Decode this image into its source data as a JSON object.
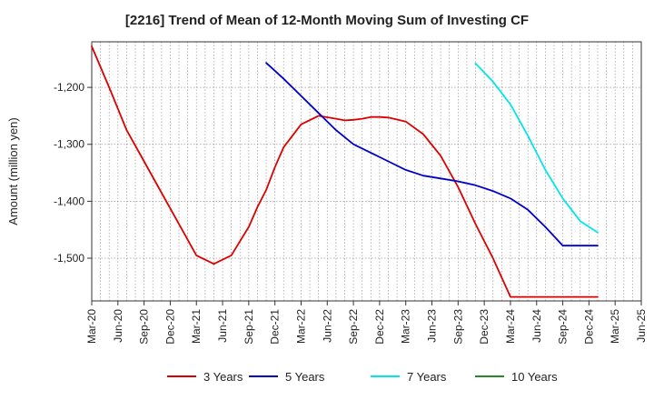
{
  "chart_data": {
    "type": "line",
    "title": "[2216]  Trend of Mean of 12-Month Moving Sum of Investing CF",
    "xlabel": "",
    "ylabel": "Amount (million yen)",
    "ylim": [
      -1575,
      -1120
    ],
    "yticks": [
      -1200,
      -1300,
      -1400,
      -1500
    ],
    "ytick_labels": [
      "-1,200",
      "-1,300",
      "-1,400",
      "-1,500"
    ],
    "x_range": [
      0,
      63
    ],
    "x_tick_labels": [
      "Mar-20",
      "Jun-20",
      "Sep-20",
      "Dec-20",
      "Mar-21",
      "Jun-21",
      "Sep-21",
      "Dec-21",
      "Mar-22",
      "Jun-22",
      "Sep-22",
      "Dec-22",
      "Mar-23",
      "Jun-23",
      "Sep-23",
      "Dec-23",
      "Mar-24",
      "Jun-24",
      "Sep-24",
      "Dec-24",
      "Mar-25",
      "Jun-25"
    ],
    "grid": true,
    "legend_position": "bottom",
    "series": [
      {
        "name": "3 Years",
        "color": "#dd0000",
        "x": [
          0,
          2,
          4,
          6,
          8,
          10,
          12,
          14,
          16,
          17,
          18,
          19,
          20,
          21,
          22,
          24,
          26,
          28,
          29,
          30,
          31,
          32,
          33,
          34,
          36,
          38,
          40,
          42,
          44,
          46,
          48,
          50,
          52,
          54,
          56,
          58
        ],
        "y": [
          -1128,
          -1200,
          -1275,
          -1330,
          -1385,
          -1440,
          -1495,
          -1510,
          -1495,
          -1470,
          -1445,
          -1410,
          -1380,
          -1340,
          -1305,
          -1265,
          -1250,
          -1255,
          -1258,
          -1257,
          -1255,
          -1252,
          -1252,
          -1253,
          -1260,
          -1282,
          -1320,
          -1375,
          -1440,
          -1500,
          -1568,
          -1568,
          -1568,
          -1568,
          -1568,
          -1568
        ]
      },
      {
        "name": "5 Years",
        "color": "#0000cc",
        "x": [
          20,
          22,
          24,
          26,
          28,
          30,
          32,
          34,
          36,
          38,
          40,
          42,
          44,
          46,
          48,
          50,
          52,
          54,
          56,
          58
        ],
        "y": [
          -1157,
          -1185,
          -1215,
          -1245,
          -1275,
          -1300,
          -1315,
          -1330,
          -1345,
          -1355,
          -1360,
          -1365,
          -1372,
          -1382,
          -1395,
          -1415,
          -1445,
          -1478,
          -1478,
          -1478
        ]
      },
      {
        "name": "7 Years",
        "color": "#00e5ee",
        "x": [
          44,
          46,
          48,
          50,
          52,
          54,
          56,
          58
        ],
        "y": [
          -1158,
          -1190,
          -1230,
          -1285,
          -1345,
          -1395,
          -1435,
          -1455
        ]
      },
      {
        "name": "10 Years",
        "color": "#228b22",
        "x": [],
        "y": []
      }
    ]
  }
}
